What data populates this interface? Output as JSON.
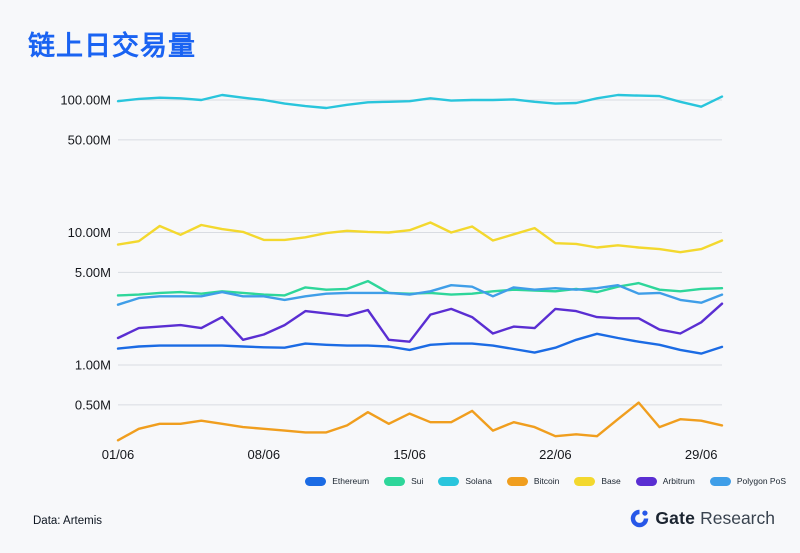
{
  "page": {
    "title": "链上日交易量",
    "footer": {
      "source": "Data: Artemis"
    },
    "logo": {
      "brand": "Gate",
      "suffix": "Research"
    }
  },
  "chart_data": {
    "type": "line",
    "title": "链上日交易量",
    "subtitle": "",
    "y_scale": "log",
    "unit": "M (millions)",
    "grid": "horizontal-only",
    "legend_position": "bottom",
    "ylim_m": [
      0.2,
      150
    ],
    "y_ticks": [
      {
        "label": "100.00M",
        "value": 100
      },
      {
        "label": "50.00M",
        "value": 50
      },
      {
        "label": "10.00M",
        "value": 10
      },
      {
        "label": "5.00M",
        "value": 5
      },
      {
        "label": "1.00M",
        "value": 1
      },
      {
        "label": "0.50M",
        "value": 0.5
      }
    ],
    "x_ticks": [
      {
        "label": "01/06",
        "day": 0
      },
      {
        "label": "08/06",
        "day": 7
      },
      {
        "label": "15/06",
        "day": 14
      },
      {
        "label": "22/06",
        "day": 21
      },
      {
        "label": "29/06",
        "day": 28
      }
    ],
    "num_points": 30,
    "series": [
      {
        "name": "Ethereum",
        "color": "#1b6be4",
        "values": [
          1.33,
          1.38,
          1.4,
          1.4,
          1.4,
          1.4,
          1.38,
          1.36,
          1.35,
          1.45,
          1.42,
          1.4,
          1.4,
          1.38,
          1.3,
          1.42,
          1.45,
          1.45,
          1.4,
          1.32,
          1.24,
          1.35,
          1.55,
          1.72,
          1.6,
          1.5,
          1.42,
          1.3,
          1.22,
          1.37
        ]
      },
      {
        "name": "Sui",
        "color": "#2ed69a",
        "values": [
          3.35,
          3.4,
          3.5,
          3.55,
          3.45,
          3.6,
          3.5,
          3.4,
          3.35,
          3.85,
          3.7,
          3.75,
          4.3,
          3.5,
          3.45,
          3.5,
          3.4,
          3.45,
          3.6,
          3.7,
          3.65,
          3.6,
          3.75,
          3.55,
          3.9,
          4.15,
          3.7,
          3.6,
          3.75,
          3.8
        ]
      },
      {
        "name": "Solana",
        "color": "#29c5dc",
        "values": [
          98,
          102,
          104,
          103,
          100,
          109,
          104,
          100,
          94,
          90,
          87,
          92,
          96,
          97,
          98,
          103,
          99,
          100,
          100,
          101,
          97,
          94,
          95,
          103,
          109,
          108,
          107,
          97,
          89,
          106
        ]
      },
      {
        "name": "Bitcoin",
        "color": "#f09e1e",
        "values": [
          0.27,
          0.33,
          0.36,
          0.36,
          0.38,
          0.36,
          0.34,
          0.33,
          0.32,
          0.31,
          0.31,
          0.35,
          0.44,
          0.36,
          0.43,
          0.37,
          0.37,
          0.45,
          0.32,
          0.37,
          0.34,
          0.29,
          0.3,
          0.29,
          0.39,
          0.52,
          0.34,
          0.39,
          0.38,
          0.35
        ]
      },
      {
        "name": "Base",
        "color": "#f3d82e",
        "values": [
          8.1,
          8.6,
          11.2,
          9.6,
          11.4,
          10.6,
          10.1,
          8.8,
          8.8,
          9.2,
          9.9,
          10.3,
          10.1,
          10.0,
          10.4,
          11.9,
          10.0,
          11.1,
          8.7,
          9.7,
          10.8,
          8.3,
          8.2,
          7.7,
          8.0,
          7.7,
          7.5,
          7.1,
          7.5,
          8.7
        ]
      },
      {
        "name": "Arbitrum",
        "color": "#5a2ed2",
        "values": [
          1.6,
          1.9,
          1.95,
          2.0,
          1.9,
          2.3,
          1.55,
          1.7,
          2.0,
          2.55,
          2.45,
          2.35,
          2.6,
          1.55,
          1.5,
          2.4,
          2.65,
          2.3,
          1.73,
          1.95,
          1.9,
          2.65,
          2.55,
          2.3,
          2.25,
          2.25,
          1.85,
          1.73,
          2.1,
          2.9
        ]
      },
      {
        "name": "Polygon PoS",
        "color": "#3f9ee8",
        "values": [
          2.85,
          3.2,
          3.3,
          3.3,
          3.3,
          3.55,
          3.3,
          3.3,
          3.1,
          3.3,
          3.45,
          3.5,
          3.5,
          3.5,
          3.4,
          3.6,
          4.0,
          3.9,
          3.3,
          3.85,
          3.7,
          3.8,
          3.7,
          3.8,
          4.0,
          3.45,
          3.5,
          3.1,
          2.95,
          3.4
        ]
      }
    ]
  }
}
